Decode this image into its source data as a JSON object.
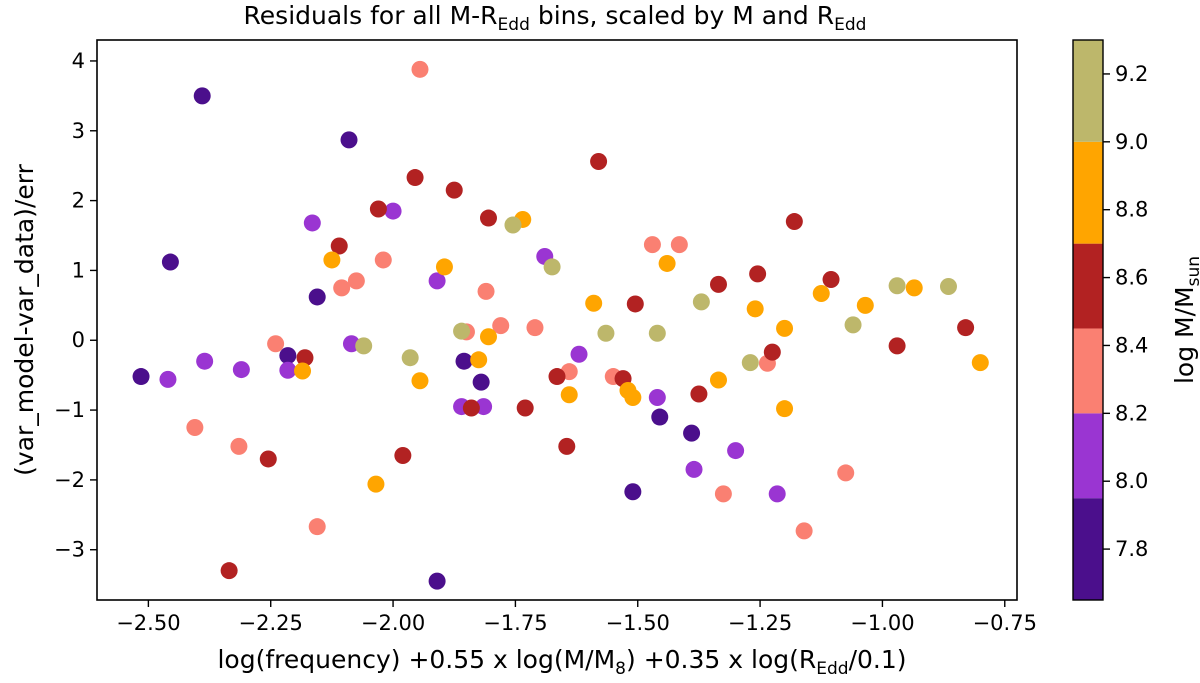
{
  "chart_data": {
    "type": "scatter",
    "title": "Residuals for all M-R",
    "title_sub": "Edd",
    "title_mid": " bins, scaled by M and R",
    "title_sub2": "Edd",
    "xlabel_parts": [
      {
        "t": "log(frequency) +0.55 x log(M/M",
        "sub": false
      },
      {
        "t": "8",
        "sub": true
      },
      {
        "t": ") +0.35 x log(R",
        "sub": false
      },
      {
        "t": "Edd",
        "sub": true
      },
      {
        "t": "/0.1)",
        "sub": false
      }
    ],
    "ylabel": "(var_model-var_data)/err",
    "colorbar_label": "log M/M",
    "colorbar_label_sub": "sun",
    "xlim": [
      -2.605,
      -0.725
    ],
    "ylim": [
      -3.72,
      4.3
    ],
    "xticks": [
      -2.5,
      -2.25,
      -2.0,
      -1.75,
      -1.5,
      -1.25,
      -1.0,
      -0.75
    ],
    "xtick_labels": [
      "−2.50",
      "−2.25",
      "−2.00",
      "−1.75",
      "−1.50",
      "−1.25",
      "−1.00",
      "−0.75"
    ],
    "yticks": [
      -3,
      -2,
      -1,
      0,
      1,
      2,
      3,
      4
    ],
    "ytick_labels": [
      "−3",
      "−2",
      "−1",
      "0",
      "1",
      "2",
      "3",
      "4"
    ],
    "colorbar": {
      "vmin": 7.65,
      "vmax": 9.3,
      "bins": [
        {
          "from": 7.65,
          "to": 7.95,
          "color": "#4b0f8c"
        },
        {
          "from": 7.95,
          "to": 8.2,
          "color": "#9a35d2"
        },
        {
          "from": 8.2,
          "to": 8.45,
          "color": "#fa8072"
        },
        {
          "from": 8.45,
          "to": 8.7,
          "color": "#b22222"
        },
        {
          "from": 8.7,
          "to": 9.0,
          "color": "#ffa500"
        },
        {
          "from": 9.0,
          "to": 9.3,
          "color": "#bdb76b"
        }
      ],
      "ticks": [
        7.8,
        8.0,
        8.2,
        8.4,
        8.6,
        8.8,
        9.0,
        9.2
      ],
      "tick_labels": [
        "7.8",
        "8.0",
        "8.2",
        "8.4",
        "8.6",
        "8.8",
        "9.0",
        "9.2"
      ]
    },
    "series": [
      {
        "name": "7.8",
        "color": "#4b0f8c",
        "points": [
          [
            -2.515,
            -0.52
          ],
          [
            -2.39,
            3.5
          ],
          [
            -2.455,
            1.12
          ],
          [
            -2.155,
            0.62
          ],
          [
            -2.215,
            -0.22
          ],
          [
            -2.09,
            2.87
          ],
          [
            -1.855,
            -0.3
          ],
          [
            -1.82,
            -0.6
          ],
          [
            -1.91,
            -3.45
          ],
          [
            -1.455,
            -1.1
          ],
          [
            -1.51,
            -2.17
          ],
          [
            -1.39,
            -1.33
          ]
        ]
      },
      {
        "name": "8.0",
        "color": "#9a35d2",
        "points": [
          [
            -2.46,
            -0.56
          ],
          [
            -2.385,
            -0.3
          ],
          [
            -2.31,
            -0.42
          ],
          [
            -2.215,
            -0.43
          ],
          [
            -2.165,
            1.68
          ],
          [
            -2.085,
            -0.05
          ],
          [
            -2.0,
            1.85
          ],
          [
            -1.91,
            0.85
          ],
          [
            -1.86,
            -0.95
          ],
          [
            -1.815,
            -0.95
          ],
          [
            -1.69,
            1.2
          ],
          [
            -1.62,
            -0.2
          ],
          [
            -1.46,
            -0.82
          ],
          [
            -1.385,
            -1.85
          ],
          [
            -1.3,
            -1.58
          ],
          [
            -1.215,
            -2.2
          ]
        ]
      },
      {
        "name": "8.4",
        "color": "#fa8072",
        "points": [
          [
            -2.405,
            -1.25
          ],
          [
            -2.315,
            -1.52
          ],
          [
            -2.24,
            -0.05
          ],
          [
            -2.155,
            -2.67
          ],
          [
            -2.105,
            0.75
          ],
          [
            -2.075,
            0.85
          ],
          [
            -2.02,
            1.15
          ],
          [
            -1.945,
            3.88
          ],
          [
            -1.85,
            0.12
          ],
          [
            -1.81,
            0.7
          ],
          [
            -1.78,
            0.21
          ],
          [
            -1.71,
            0.18
          ],
          [
            -1.64,
            -0.45
          ],
          [
            -1.55,
            -0.52
          ],
          [
            -1.47,
            1.37
          ],
          [
            -1.415,
            1.37
          ],
          [
            -1.325,
            -2.2
          ],
          [
            -1.235,
            -0.33
          ],
          [
            -1.16,
            -2.73
          ],
          [
            -1.075,
            -1.9
          ]
        ]
      },
      {
        "name": "8.6",
        "color": "#b22222",
        "points": [
          [
            -2.335,
            -3.3
          ],
          [
            -2.255,
            -1.7
          ],
          [
            -2.18,
            -0.25
          ],
          [
            -2.11,
            1.35
          ],
          [
            -2.03,
            1.88
          ],
          [
            -1.98,
            -1.65
          ],
          [
            -1.955,
            2.33
          ],
          [
            -1.875,
            2.15
          ],
          [
            -1.84,
            -0.97
          ],
          [
            -1.805,
            1.75
          ],
          [
            -1.73,
            -0.97
          ],
          [
            -1.665,
            -0.52
          ],
          [
            -1.645,
            -1.52
          ],
          [
            -1.58,
            2.56
          ],
          [
            -1.53,
            -0.55
          ],
          [
            -1.505,
            0.52
          ],
          [
            -1.375,
            -0.77
          ],
          [
            -1.335,
            0.8
          ],
          [
            -1.255,
            0.95
          ],
          [
            -1.225,
            -0.17
          ],
          [
            -1.18,
            1.7
          ],
          [
            -1.105,
            0.87
          ],
          [
            -0.97,
            -0.08
          ],
          [
            -0.83,
            0.18
          ]
        ]
      },
      {
        "name": "8.8",
        "color": "#ffa500",
        "points": [
          [
            -2.185,
            -0.44
          ],
          [
            -2.125,
            1.15
          ],
          [
            -2.035,
            -2.06
          ],
          [
            -1.945,
            -0.58
          ],
          [
            -1.895,
            1.05
          ],
          [
            -1.825,
            -0.28
          ],
          [
            -1.805,
            0.05
          ],
          [
            -1.735,
            1.73
          ],
          [
            -1.64,
            -0.78
          ],
          [
            -1.59,
            0.53
          ],
          [
            -1.52,
            -0.72
          ],
          [
            -1.51,
            -0.82
          ],
          [
            -1.44,
            1.1
          ],
          [
            -1.335,
            -0.57
          ],
          [
            -1.26,
            0.45
          ],
          [
            -1.2,
            0.17
          ],
          [
            -1.2,
            -0.98
          ],
          [
            -1.125,
            0.67
          ],
          [
            -1.035,
            0.5
          ],
          [
            -0.935,
            0.75
          ],
          [
            -0.8,
            -0.32
          ]
        ]
      },
      {
        "name": "9.2",
        "color": "#bdb76b",
        "points": [
          [
            -2.06,
            -0.08
          ],
          [
            -1.965,
            -0.25
          ],
          [
            -1.86,
            0.13
          ],
          [
            -1.755,
            1.65
          ],
          [
            -1.675,
            1.05
          ],
          [
            -1.565,
            0.1
          ],
          [
            -1.46,
            0.1
          ],
          [
            -1.37,
            0.55
          ],
          [
            -1.27,
            -0.32
          ],
          [
            -1.06,
            0.22
          ],
          [
            -0.97,
            0.78
          ],
          [
            -0.865,
            0.77
          ]
        ]
      }
    ]
  }
}
